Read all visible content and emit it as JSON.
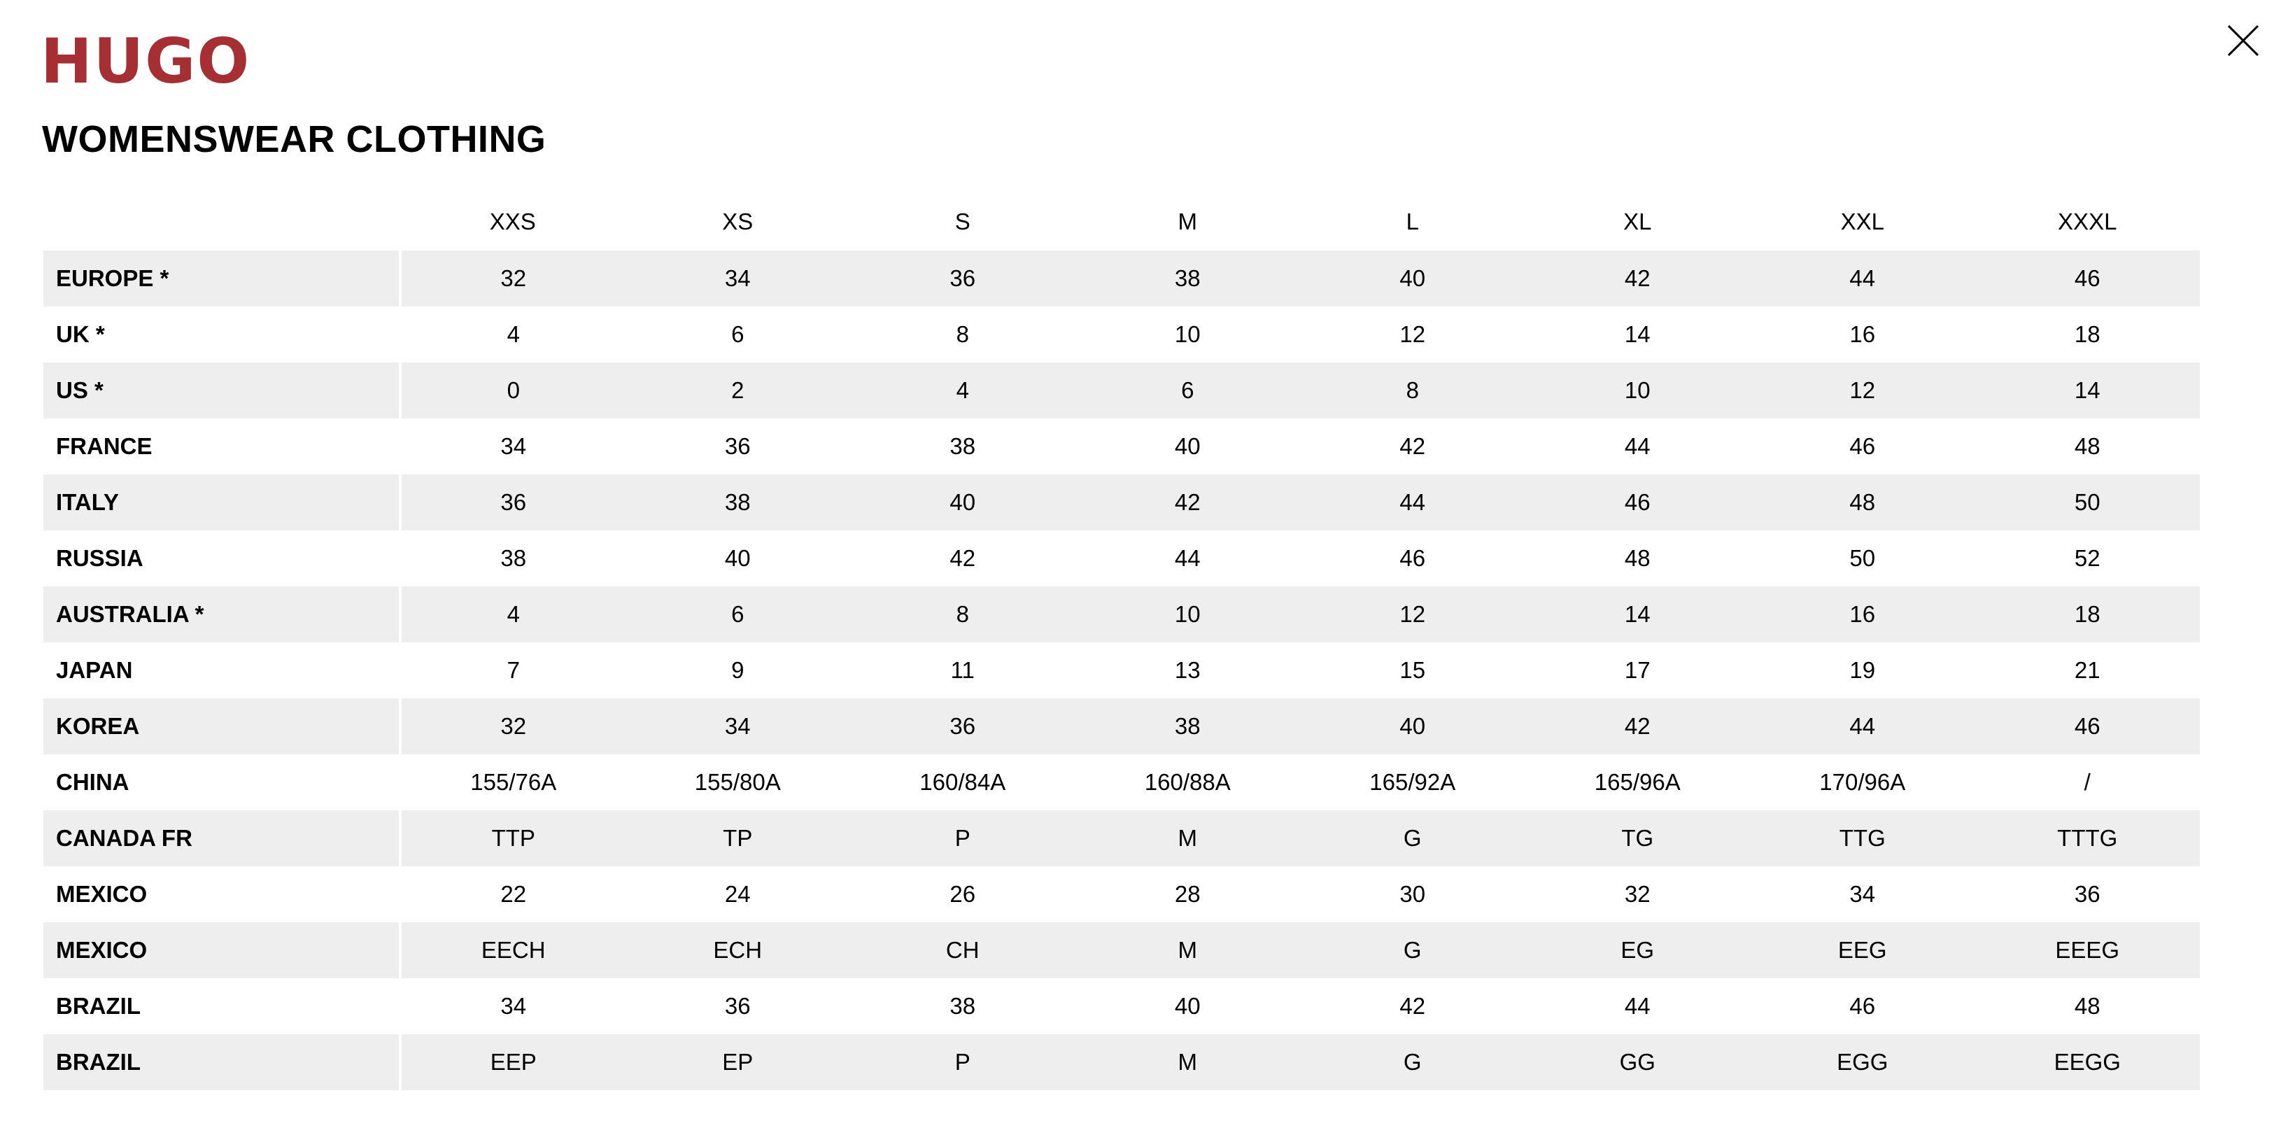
{
  "brand": {
    "logo": "HUGO",
    "color": "#a52f33"
  },
  "title": "WOMENSWEAR CLOTHING",
  "close_icon": "close-icon",
  "table": {
    "headers": [
      "",
      "XXS",
      "XS",
      "S",
      "M",
      "L",
      "XL",
      "XXL",
      "XXXL"
    ],
    "rows": [
      {
        "label": "EUROPE *",
        "values": [
          "32",
          "34",
          "36",
          "38",
          "40",
          "42",
          "44",
          "46"
        ]
      },
      {
        "label": "UK *",
        "values": [
          "4",
          "6",
          "8",
          "10",
          "12",
          "14",
          "16",
          "18"
        ]
      },
      {
        "label": "US *",
        "values": [
          "0",
          "2",
          "4",
          "6",
          "8",
          "10",
          "12",
          "14"
        ]
      },
      {
        "label": "FRANCE",
        "values": [
          "34",
          "36",
          "38",
          "40",
          "42",
          "44",
          "46",
          "48"
        ]
      },
      {
        "label": "ITALY",
        "values": [
          "36",
          "38",
          "40",
          "42",
          "44",
          "46",
          "48",
          "50"
        ]
      },
      {
        "label": "RUSSIA",
        "values": [
          "38",
          "40",
          "42",
          "44",
          "46",
          "48",
          "50",
          "52"
        ]
      },
      {
        "label": "AUSTRALIA *",
        "values": [
          "4",
          "6",
          "8",
          "10",
          "12",
          "14",
          "16",
          "18"
        ]
      },
      {
        "label": "JAPAN",
        "values": [
          "7",
          "9",
          "11",
          "13",
          "15",
          "17",
          "19",
          "21"
        ]
      },
      {
        "label": "KOREA",
        "values": [
          "32",
          "34",
          "36",
          "38",
          "40",
          "42",
          "44",
          "46"
        ]
      },
      {
        "label": "CHINA",
        "values": [
          "155/76A",
          "155/80A",
          "160/84A",
          "160/88A",
          "165/92A",
          "165/96A",
          "170/96A",
          "/"
        ]
      },
      {
        "label": "CANADA FR",
        "values": [
          "TTP",
          "TP",
          "P",
          "M",
          "G",
          "TG",
          "TTG",
          "TTTG"
        ]
      },
      {
        "label": "MEXICO",
        "values": [
          "22",
          "24",
          "26",
          "28",
          "30",
          "32",
          "34",
          "36"
        ]
      },
      {
        "label": "MEXICO",
        "values": [
          "EECH",
          "ECH",
          "CH",
          "M",
          "G",
          "EG",
          "EEG",
          "EEEG"
        ]
      },
      {
        "label": "BRAZIL",
        "values": [
          "34",
          "36",
          "38",
          "40",
          "42",
          "44",
          "46",
          "48"
        ]
      },
      {
        "label": "BRAZIL",
        "values": [
          "EEP",
          "EP",
          "P",
          "M",
          "G",
          "GG",
          "EGG",
          "EEGG"
        ]
      }
    ]
  }
}
